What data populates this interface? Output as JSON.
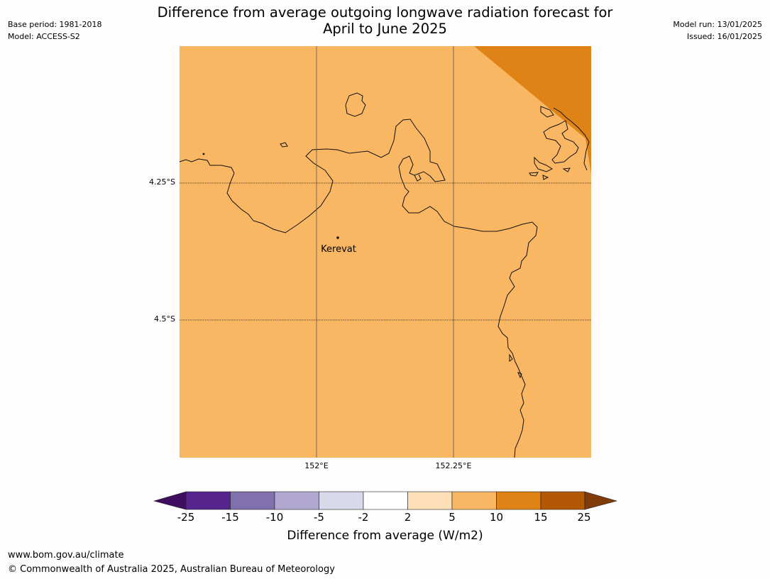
{
  "header": {
    "base_period": "Base period: 1981-2018",
    "model": "Model: ACCESS-S2",
    "model_run": "Model run: 13/01/2025",
    "issued": "Issued: 16/01/2025",
    "title_line1": "Difference from average outgoing longwave radiation forecast for",
    "title_line2": "April to June 2025"
  },
  "map": {
    "place_label": "Kerevat",
    "lat_labels": [
      "4.25°S",
      "4.5°S"
    ],
    "lon_labels": [
      "152°E",
      "152.25°E"
    ],
    "background_category": "5 to 10",
    "colors": {
      "ocean_fill": "#f9b763",
      "corner_fill": "#e08317",
      "coast": "#111111"
    }
  },
  "colorbar": {
    "ticks": [
      "-25",
      "-15",
      "-10",
      "-5",
      "-2",
      "2",
      "5",
      "10",
      "15",
      "25"
    ],
    "colors": [
      "#3f0e60",
      "#55248c",
      "#8070ad",
      "#b1a8d2",
      "#d9d9ec",
      "#ffffff",
      "#fde0b7",
      "#f9b763",
      "#e08317",
      "#b35805",
      "#7f3b08"
    ],
    "label": "Difference from average (W/m2)"
  },
  "footer": {
    "url": "www.bom.gov.au/climate",
    "copyright": "© Commonwealth of Australia 2025, Australian Bureau of Meteorology"
  }
}
